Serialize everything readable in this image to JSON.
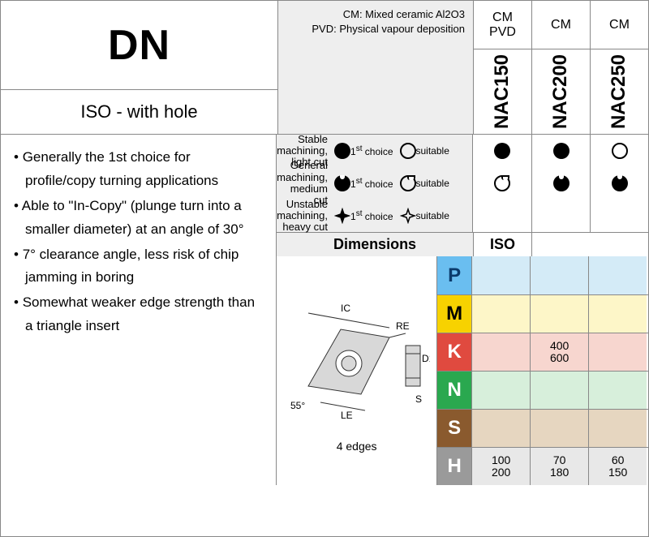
{
  "title": "DN",
  "subtitle": "ISO - with hole",
  "coating_legend": [
    "CM: Mixed ceramic Al2O3",
    "PVD: Physical vapour deposition"
  ],
  "grades": [
    {
      "name": "NAC150",
      "coatings": [
        "CM",
        "PVD"
      ]
    },
    {
      "name": "NAC200",
      "coatings": [
        "CM"
      ]
    },
    {
      "name": "NAC250",
      "coatings": [
        "CM"
      ]
    }
  ],
  "bullets": [
    "Generally the 1st choice for profile/copy turning applications",
    "Able to \"In-Copy\" (plunge turn into a smaller diameter) at an angle of 30°",
    "7° clearance angle, less risk of chip jamming in boring",
    "Somewhat weaker edge strength than a triangle insert"
  ],
  "machining_legend": {
    "first": "1st choice",
    "sup": "st",
    "suitable": "suitable",
    "rows": [
      {
        "label1": "Stable machining,",
        "label2": "light cut",
        "kind": "circle"
      },
      {
        "label1": "General machining,",
        "label2": "medium cut",
        "kind": "notch"
      },
      {
        "label1": "Unstable machining,",
        "label2": "heavy cut",
        "kind": "cross"
      }
    ]
  },
  "machining_matrix": [
    [
      "filled",
      "filled",
      "open"
    ],
    [
      "open-notch",
      "filled-notch",
      "filled-notch"
    ],
    [
      "",
      "",
      ""
    ]
  ],
  "dimensions_title": "Dimensions",
  "iso_title": "ISO",
  "edges_label": "4 edges",
  "diagram_labels": {
    "IC": "IC",
    "RE": "RE",
    "LE": "LE",
    "D1": "D1",
    "S": "S",
    "angle": "55°"
  },
  "iso_rows": [
    {
      "code": "P",
      "bg": "#6abef0",
      "cell_bg": "#d4ebf7",
      "fg": "#0b3a6b",
      "cells": [
        [],
        [],
        []
      ]
    },
    {
      "code": "M",
      "bg": "#f7d200",
      "cell_bg": "#fdf6c8",
      "fg": "#000",
      "cells": [
        [],
        [],
        []
      ]
    },
    {
      "code": "K",
      "bg": "#e04a3f",
      "cell_bg": "#f7d6cf",
      "fg": "#fff",
      "cells": [
        [],
        [
          "400",
          "600"
        ],
        []
      ]
    },
    {
      "code": "N",
      "bg": "#2aa84f",
      "cell_bg": "#d7efdb",
      "fg": "#fff",
      "cells": [
        [],
        [],
        []
      ]
    },
    {
      "code": "S",
      "bg": "#8a5a2e",
      "cell_bg": "#e6d6c0",
      "fg": "#fff",
      "cells": [
        [],
        [],
        []
      ]
    },
    {
      "code": "H",
      "bg": "#9a9a9a",
      "cell_bg": "#e8e8e8",
      "fg": "#fff",
      "cells": [
        [
          "100",
          "200"
        ],
        [
          "70",
          "180"
        ],
        [
          "60",
          "150"
        ]
      ]
    }
  ],
  "colors": {
    "border": "#888888",
    "panel_bg": "#eeeeee"
  }
}
